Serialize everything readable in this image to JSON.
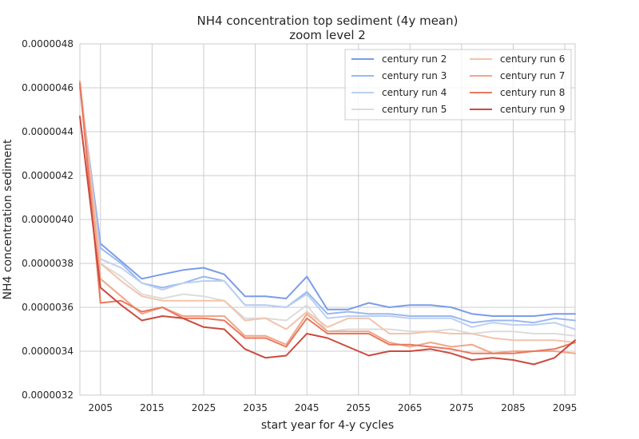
{
  "chart_data": {
    "type": "line",
    "title": "NH4 concentration top sediment (4y mean)",
    "subtitle": "zoom level 2",
    "xlabel": "start year for 4-y cycles",
    "ylabel": "NH4 concentration sediment",
    "xlim": [
      2001,
      2097
    ],
    "ylim": [
      3.2e-06,
      4.8e-06
    ],
    "grid": true,
    "legend_position": "top-right",
    "x_ticks": [
      2005,
      2015,
      2025,
      2035,
      2045,
      2055,
      2065,
      2075,
      2085,
      2095
    ],
    "x_tick_labels": [
      "2005",
      "2015",
      "2025",
      "2035",
      "2045",
      "2055",
      "2065",
      "2075",
      "2085",
      "2095"
    ],
    "y_ticks": [
      3.2e-06,
      3.4e-06,
      3.6e-06,
      3.8e-06,
      4e-06,
      4.2e-06,
      4.4e-06,
      4.6e-06,
      4.8e-06
    ],
    "y_tick_labels": [
      "0.0000032",
      "0.0000034",
      "0.0000036",
      "0.0000038",
      "0.0000040",
      "0.0000042",
      "0.0000044",
      "0.0000046",
      "0.0000048"
    ],
    "x": [
      2001,
      2005,
      2009,
      2013,
      2017,
      2021,
      2025,
      2029,
      2033,
      2037,
      2041,
      2045,
      2049,
      2053,
      2057,
      2061,
      2065,
      2069,
      2073,
      2077,
      2081,
      2085,
      2089,
      2093,
      2097
    ],
    "series": [
      {
        "name": "century run 2",
        "color": "#7a9cea",
        "values": [
          4.6e-06,
          3.89e-06,
          3.81e-06,
          3.73e-06,
          3.75e-06,
          3.77e-06,
          3.78e-06,
          3.75e-06,
          3.65e-06,
          3.65e-06,
          3.64e-06,
          3.74e-06,
          3.59e-06,
          3.59e-06,
          3.62e-06,
          3.6e-06,
          3.61e-06,
          3.61e-06,
          3.6e-06,
          3.57e-06,
          3.56e-06,
          3.56e-06,
          3.56e-06,
          3.57e-06,
          3.57e-06
        ]
      },
      {
        "name": "century run 3",
        "color": "#9ab8f2",
        "values": [
          4.61e-06,
          3.87e-06,
          3.8e-06,
          3.71e-06,
          3.69e-06,
          3.71e-06,
          3.74e-06,
          3.72e-06,
          3.61e-06,
          3.61e-06,
          3.6e-06,
          3.67e-06,
          3.57e-06,
          3.58e-06,
          3.57e-06,
          3.57e-06,
          3.56e-06,
          3.56e-06,
          3.56e-06,
          3.53e-06,
          3.54e-06,
          3.54e-06,
          3.53e-06,
          3.55e-06,
          3.54e-06
        ]
      },
      {
        "name": "century run 4",
        "color": "#bcd0f1",
        "values": [
          4.62e-06,
          3.82e-06,
          3.78e-06,
          3.71e-06,
          3.68e-06,
          3.71e-06,
          3.72e-06,
          3.72e-06,
          3.61e-06,
          3.61e-06,
          3.6e-06,
          3.66e-06,
          3.55e-06,
          3.56e-06,
          3.56e-06,
          3.56e-06,
          3.55e-06,
          3.55e-06,
          3.55e-06,
          3.51e-06,
          3.53e-06,
          3.52e-06,
          3.52e-06,
          3.53e-06,
          3.5e-06
        ]
      },
      {
        "name": "century run 5",
        "color": "#dcdcdc",
        "values": [
          4.62e-06,
          3.8e-06,
          3.74e-06,
          3.66e-06,
          3.64e-06,
          3.66e-06,
          3.65e-06,
          3.63e-06,
          3.55e-06,
          3.55e-06,
          3.54e-06,
          3.61e-06,
          3.49e-06,
          3.5e-06,
          3.5e-06,
          3.5e-06,
          3.49e-06,
          3.49e-06,
          3.5e-06,
          3.48e-06,
          3.49e-06,
          3.49e-06,
          3.48e-06,
          3.48e-06,
          3.47e-06
        ]
      },
      {
        "name": "century run 6",
        "color": "#f3c4ac",
        "values": [
          4.63e-06,
          3.8e-06,
          3.72e-06,
          3.65e-06,
          3.63e-06,
          3.63e-06,
          3.63e-06,
          3.63e-06,
          3.54e-06,
          3.55e-06,
          3.5e-06,
          3.58e-06,
          3.51e-06,
          3.55e-06,
          3.55e-06,
          3.48e-06,
          3.48e-06,
          3.49e-06,
          3.48e-06,
          3.48e-06,
          3.46e-06,
          3.45e-06,
          3.45e-06,
          3.45e-06,
          3.44e-06
        ]
      },
      {
        "name": "century run 7",
        "color": "#f2a688",
        "values": [
          4.63e-06,
          3.73e-06,
          3.65e-06,
          3.57e-06,
          3.6e-06,
          3.56e-06,
          3.56e-06,
          3.56e-06,
          3.47e-06,
          3.47e-06,
          3.43e-06,
          3.57e-06,
          3.49e-06,
          3.49e-06,
          3.49e-06,
          3.44e-06,
          3.42e-06,
          3.44e-06,
          3.42e-06,
          3.43e-06,
          3.39e-06,
          3.4e-06,
          3.4e-06,
          3.4e-06,
          3.39e-06
        ]
      },
      {
        "name": "century run 8",
        "color": "#e8785f",
        "values": [
          4.62e-06,
          3.62e-06,
          3.63e-06,
          3.58e-06,
          3.6e-06,
          3.55e-06,
          3.55e-06,
          3.54e-06,
          3.46e-06,
          3.46e-06,
          3.42e-06,
          3.55e-06,
          3.48e-06,
          3.48e-06,
          3.48e-06,
          3.43e-06,
          3.43e-06,
          3.42e-06,
          3.41e-06,
          3.39e-06,
          3.39e-06,
          3.39e-06,
          3.4e-06,
          3.41e-06,
          3.44e-06
        ]
      },
      {
        "name": "century run 9",
        "color": "#cc4a3e",
        "values": [
          4.47e-06,
          3.69e-06,
          3.61e-06,
          3.54e-06,
          3.56e-06,
          3.55e-06,
          3.51e-06,
          3.5e-06,
          3.41e-06,
          3.37e-06,
          3.38e-06,
          3.48e-06,
          3.46e-06,
          3.42e-06,
          3.38e-06,
          3.4e-06,
          3.4e-06,
          3.41e-06,
          3.39e-06,
          3.36e-06,
          3.37e-06,
          3.36e-06,
          3.34e-06,
          3.37e-06,
          3.45e-06
        ]
      }
    ]
  }
}
